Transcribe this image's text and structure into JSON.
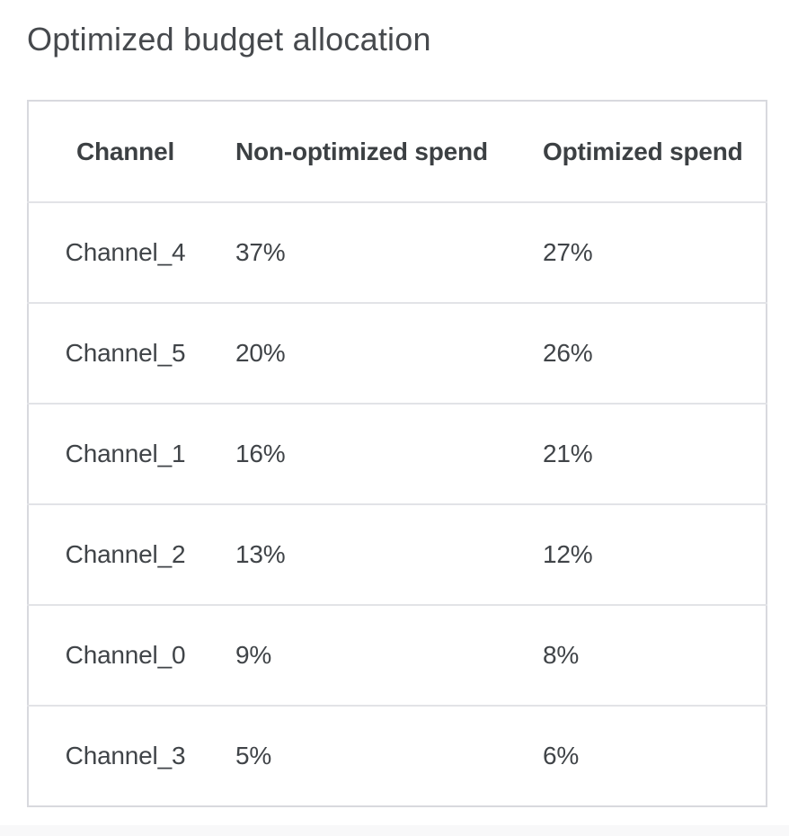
{
  "title": "Optimized budget allocation",
  "table": {
    "columns": [
      "Channel",
      "Non-optimized spend",
      "Optimized spend"
    ],
    "rows": [
      {
        "channel": "Channel_4",
        "non_optimized": "37%",
        "optimized": "27%"
      },
      {
        "channel": "Channel_5",
        "non_optimized": "20%",
        "optimized": "26%"
      },
      {
        "channel": "Channel_1",
        "non_optimized": "16%",
        "optimized": "21%"
      },
      {
        "channel": "Channel_2",
        "non_optimized": "13%",
        "optimized": "12%"
      },
      {
        "channel": "Channel_0",
        "non_optimized": "9%",
        "optimized": "8%"
      },
      {
        "channel": "Channel_3",
        "non_optimized": "5%",
        "optimized": "6%"
      }
    ]
  },
  "colors": {
    "background": "#ffffff",
    "title_text": "#46494d",
    "header_text": "#3c4043",
    "body_text": "#404448",
    "outer_border": "#d8d9de",
    "row_divider": "#e2e3e7",
    "footer_strip": "#f8f8f9"
  },
  "chart_data": {
    "type": "table",
    "title": "Optimized budget allocation",
    "categories": [
      "Channel_4",
      "Channel_5",
      "Channel_1",
      "Channel_2",
      "Channel_0",
      "Channel_3"
    ],
    "series": [
      {
        "name": "Non-optimized spend",
        "values": [
          37,
          20,
          16,
          13,
          9,
          5
        ],
        "unit": "%"
      },
      {
        "name": "Optimized spend",
        "values": [
          27,
          26,
          21,
          12,
          8,
          6
        ],
        "unit": "%"
      }
    ],
    "layout": {
      "grid": "horizontal-row-dividers",
      "legend": "none"
    }
  }
}
